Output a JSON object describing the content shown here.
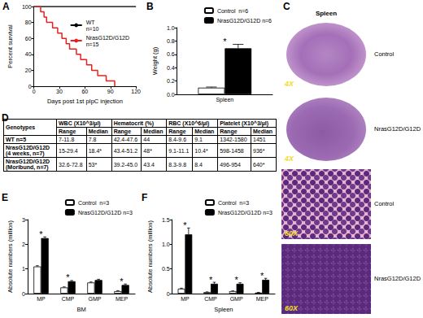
{
  "chart_data": [
    {
      "panel": "A",
      "type": "line",
      "line_style": "step",
      "x_label": "Days post 1st pIpC injection",
      "y_label": "Percent survival",
      "xlim": [
        0,
        120
      ],
      "xticks": [
        0,
        30,
        60,
        90,
        120
      ],
      "ylim": [
        0,
        100
      ],
      "yticks": [
        0,
        20,
        40,
        60,
        80,
        100
      ],
      "legend": "top-right",
      "grid": false,
      "series": [
        {
          "name": "WT\nn=10",
          "color": "#000000",
          "x": [
            0,
            120
          ],
          "values": [
            100,
            100
          ]
        },
        {
          "name": "NrasG12D/G12D\nn=15",
          "color": "#e8201e",
          "x": [
            0,
            8,
            12,
            15,
            22,
            28,
            33,
            38,
            42,
            50,
            55,
            62,
            68,
            75,
            85,
            95
          ],
          "values": [
            100,
            93.3,
            86.7,
            80,
            73.3,
            66.7,
            60,
            53.3,
            46.7,
            40,
            33.3,
            26.7,
            20,
            13.3,
            6.7,
            0
          ]
        }
      ]
    },
    {
      "panel": "B",
      "type": "bar",
      "y_label": "Weight (g)",
      "categories": [
        "Spleen"
      ],
      "ylim": [
        0,
        1
      ],
      "yticks": [
        {
          "value": 0,
          "label": "0.0"
        },
        0.2,
        0.4,
        0.6,
        0.8,
        {
          "value": 1,
          "label": "1.0"
        }
      ],
      "legend": "top-right",
      "grid": false,
      "annotation": "*",
      "significant": [
        true
      ],
      "series": [
        {
          "name": "Control  n=6",
          "color": "#ffffff",
          "values": [
            0.1
          ],
          "errors": [
            0.01
          ]
        },
        {
          "name": "NrasG12D/G12D n=6",
          "color": "#000000",
          "values": [
            0.69
          ],
          "errors": [
            0.06
          ]
        }
      ]
    },
    {
      "panel": "E",
      "type": "bar",
      "x_label": "BM",
      "y_label": "Absolute numbers (million)",
      "categories": [
        "MP",
        "CMP",
        "GMP",
        "MEP"
      ],
      "ylim": [
        0,
        3
      ],
      "yticks": [
        0,
        1,
        2,
        3
      ],
      "legend": "top-right",
      "grid": false,
      "annotation": "*",
      "significant": [
        true,
        true,
        false,
        true
      ],
      "series": [
        {
          "name": "Control  n=3",
          "color": "#ffffff",
          "values": [
            1.1,
            0.25,
            0.45,
            0.1
          ],
          "errors": [
            0.03,
            0.02,
            0.02,
            0.02
          ]
        },
        {
          "name": "NrasG12D/G12D n=3",
          "color": "#000000",
          "values": [
            2.25,
            0.5,
            0.55,
            0.35
          ],
          "errors": [
            0.05,
            0.03,
            0.03,
            0.04
          ]
        }
      ]
    },
    {
      "panel": "F",
      "type": "bar",
      "x_label": "Spleen",
      "y_label": "Absolute numbers (million)",
      "categories": [
        "MP",
        "CMP",
        "GMP",
        "MEP"
      ],
      "ylim": [
        0,
        1.5
      ],
      "yticks": [
        0,
        0.5,
        {
          "value": 1,
          "label": "1.0"
        },
        1.5
      ],
      "legend": "top-right",
      "grid": false,
      "annotation": "*",
      "significant": [
        true,
        true,
        true,
        true
      ],
      "series": [
        {
          "name": "Control  n=3",
          "color": "#ffffff",
          "values": [
            0.1,
            0.03,
            0.05,
            0.02
          ],
          "errors": [
            0.01,
            0.005,
            0.005,
            0.005
          ]
        },
        {
          "name": "NrasG12D/G12D n=3",
          "color": "#000000",
          "values": [
            1.2,
            0.2,
            0.2,
            0.28
          ],
          "errors": [
            0.13,
            0.03,
            0.02,
            0.03
          ]
        }
      ]
    }
  ],
  "images": {
    "panel": "C",
    "title": "Spleen",
    "items": [
      {
        "label": "Control",
        "magnification": "4X"
      },
      {
        "label": "NrasG12D/G12D",
        "magnification": "4X"
      },
      {
        "label": "Control",
        "magnification": "60X"
      },
      {
        "label": "NrasG12D/G12D",
        "magnification": "60X"
      }
    ]
  },
  "table": {
    "panel": "D",
    "header": [
      "Genotypes",
      "WBC (X10^3/µl)",
      "Hematocrit (%)",
      "RBC (X10^6/µl)",
      "Platelet (X10^3/µl)"
    ],
    "subheader": [
      "Range",
      "Median"
    ],
    "rows": [
      [
        "WT n=5",
        "7-11.8",
        "7.8",
        "42.4-47.6",
        "44",
        "8.4-9.6",
        "9.1",
        "1342-1580",
        "1451"
      ],
      [
        "NrasG12D/G12D (4 weeks, n=7)",
        "15-29.4",
        "18.4*",
        "43.4-51.2",
        "48*",
        "9.1-11.1",
        "10.4*",
        "598-1458",
        "936*"
      ],
      [
        "NrasG12D/G12D (Moribund, n=7)",
        "32.6-72.8",
        "53*",
        "39.2-45.0",
        "43.4",
        "8.3-9.8",
        "8.4",
        "496-954",
        "640*"
      ]
    ]
  }
}
